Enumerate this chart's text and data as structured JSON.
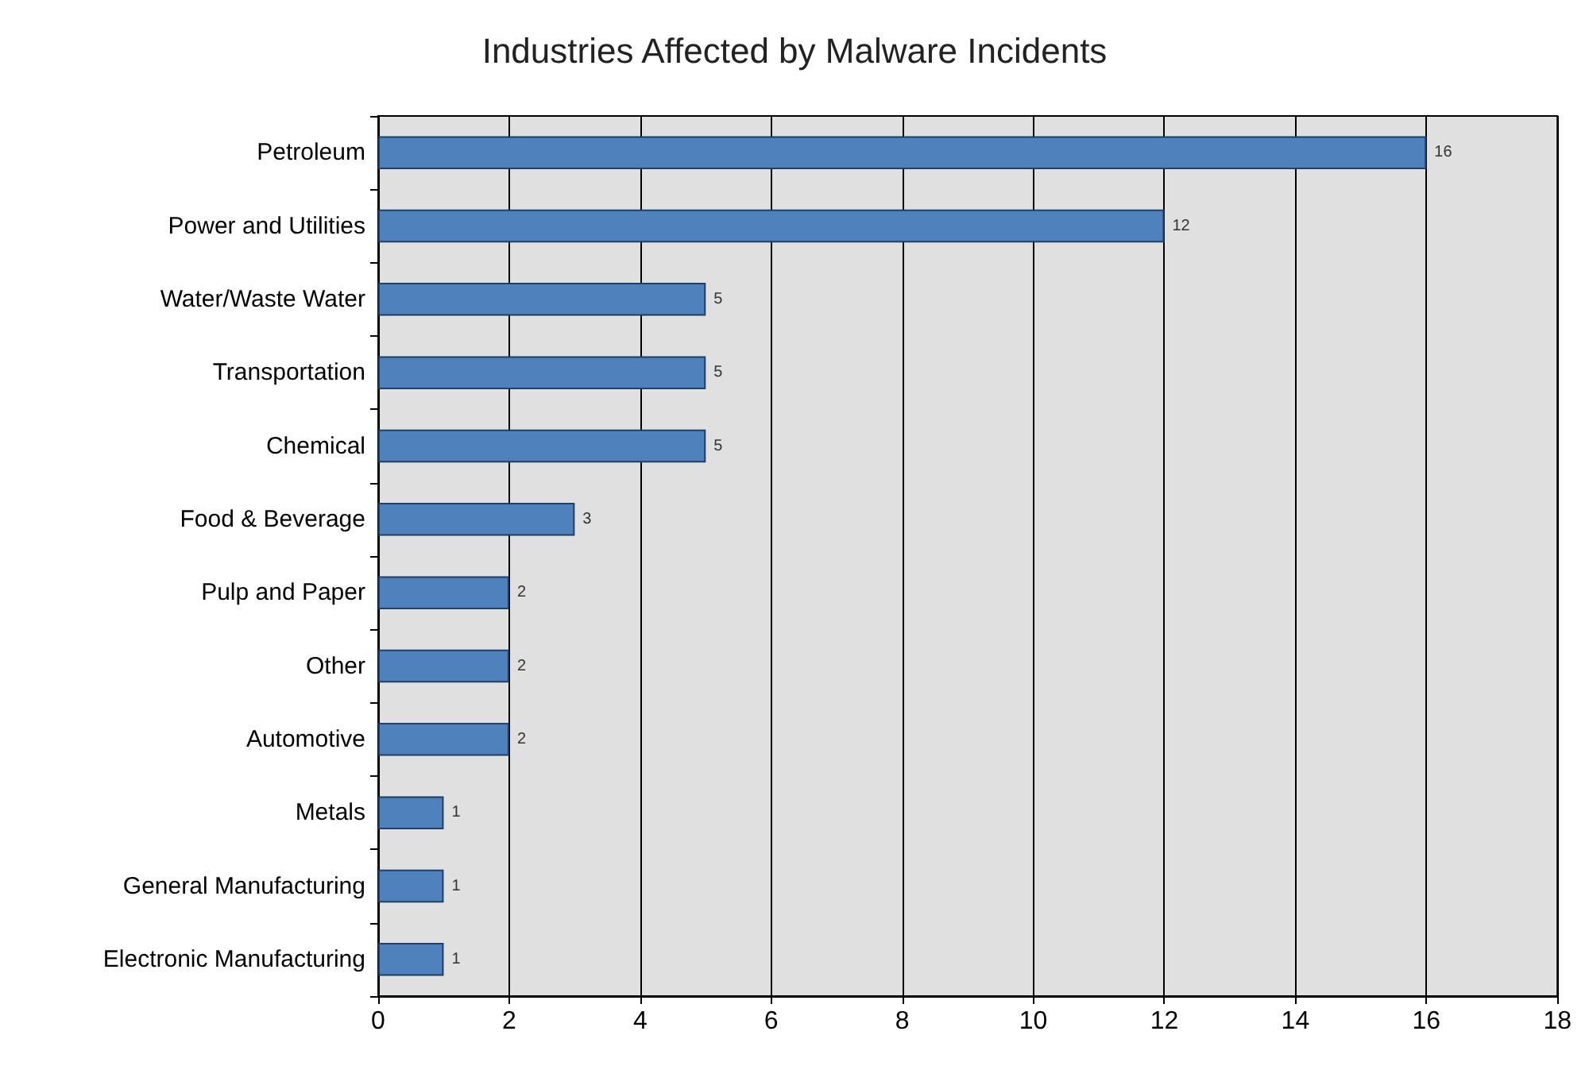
{
  "chart_data": {
    "type": "bar",
    "orientation": "horizontal",
    "title": "Industries Affected by Malware Incidents",
    "categories": [
      "Petroleum",
      "Power and Utilities",
      "Water/Waste Water",
      "Transportation",
      "Chemical",
      "Food & Beverage",
      "Pulp and Paper",
      "Other",
      "Automotive",
      "Metals",
      "General Manufacturing",
      "Electronic Manufacturing"
    ],
    "values": [
      16,
      12,
      5,
      5,
      5,
      3,
      2,
      2,
      2,
      1,
      1,
      1
    ],
    "color": "#4f81bd",
    "xlim": [
      0,
      18
    ],
    "xticks": [
      0,
      2,
      4,
      6,
      8,
      10,
      12,
      14,
      16,
      18
    ],
    "grid": "x",
    "data_labels": true
  }
}
